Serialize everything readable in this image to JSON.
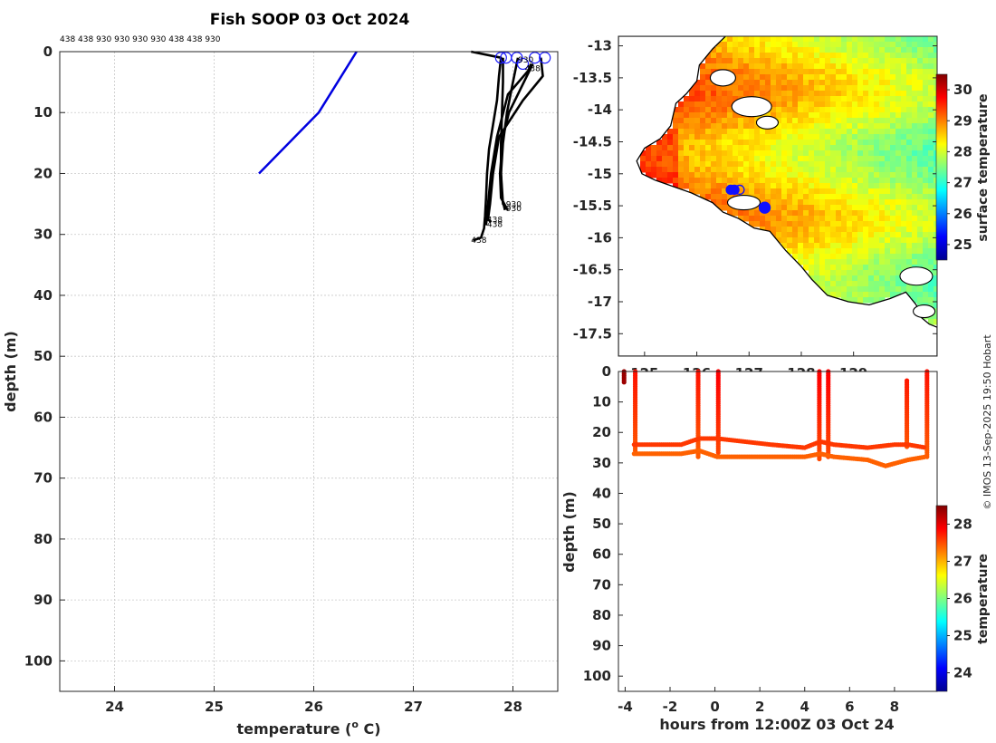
{
  "figure": {
    "title": "Fish SOOP 03 Oct 2024",
    "copyright": "© IMOS 13-Sep-2025 19:50 Hobart",
    "top_id_labels": "438 438 930 930 930 930 438 438 930"
  },
  "colors": {
    "surface_line": "#0000e0",
    "profile_line": "#000000",
    "marker_ring": "#1a1aff",
    "grid": "#c8c8c8",
    "land_line": "#000000"
  },
  "chart_data": [
    {
      "id": "profile",
      "type": "line",
      "xlabel": "temperature (o C)",
      "xlabel_main": "temperature (",
      "xlabel_sup": "o",
      "xlabel_end": " C)",
      "ylabel": "depth (m)",
      "xlim": [
        23.45,
        28.45
      ],
      "ylim": [
        105,
        0
      ],
      "xticks": [
        24,
        25,
        26,
        27,
        28
      ],
      "yticks": [
        0,
        10,
        20,
        30,
        40,
        50,
        60,
        70,
        80,
        90,
        100
      ],
      "grid": true,
      "series": [
        {
          "color": "blue",
          "points": [
            [
              26.43,
              0
            ],
            [
              26.05,
              10
            ],
            [
              25.45,
              20
            ]
          ]
        },
        {
          "color": "black",
          "points": [
            [
              27.58,
              0
            ],
            [
              27.88,
              1
            ],
            [
              27.86,
              4
            ],
            [
              27.84,
              8
            ],
            [
              27.8,
              12
            ],
            [
              27.76,
              16
            ],
            [
              27.74,
              20
            ],
            [
              27.73,
              24
            ],
            [
              27.72,
              27
            ],
            [
              27.71,
              29
            ],
            [
              27.68,
              30.5
            ],
            [
              27.6,
              31
            ]
          ]
        },
        {
          "color": "black",
          "points": [
            [
              27.9,
              1
            ],
            [
              27.9,
              5
            ],
            [
              27.89,
              10
            ],
            [
              27.88,
              15
            ],
            [
              27.88,
              20
            ],
            [
              27.89,
              24
            ],
            [
              27.92,
              26
            ]
          ]
        },
        {
          "color": "black",
          "points": [
            [
              28.05,
              1
            ],
            [
              28.0,
              5
            ],
            [
              27.94,
              10
            ],
            [
              27.9,
              15
            ],
            [
              27.88,
              20
            ],
            [
              27.9,
              25
            ],
            [
              27.95,
              26
            ]
          ]
        },
        {
          "color": "black",
          "points": [
            [
              28.2,
              2
            ],
            [
              28.08,
              6
            ],
            [
              27.96,
              10
            ],
            [
              27.9,
              14
            ],
            [
              27.87,
              20
            ],
            [
              27.88,
              24
            ],
            [
              27.93,
              25.5
            ]
          ]
        },
        {
          "color": "black",
          "points": [
            [
              28.28,
              1
            ],
            [
              28.3,
              4
            ],
            [
              28.1,
              8
            ],
            [
              27.86,
              14
            ],
            [
              27.8,
              20
            ],
            [
              27.77,
              25
            ],
            [
              27.75,
              27.5
            ],
            [
              27.78,
              28
            ]
          ]
        },
        {
          "color": "black",
          "points": [
            [
              28.18,
              2
            ],
            [
              28.16,
              3
            ],
            [
              27.95,
              7
            ],
            [
              27.84,
              14
            ],
            [
              27.78,
              20
            ],
            [
              27.75,
              25
            ],
            [
              27.73,
              28.5
            ]
          ]
        }
      ],
      "surface_markers": [
        {
          "t": 27.88,
          "d": 1
        },
        {
          "t": 27.93,
          "d": 1
        },
        {
          "t": 28.04,
          "d": 1
        },
        {
          "t": 28.1,
          "d": 2
        },
        {
          "t": 28.22,
          "d": 1
        },
        {
          "t": 28.32,
          "d": 1
        }
      ],
      "annotations": [
        {
          "text": "930",
          "t": 27.93,
          "d": 25.5
        },
        {
          "text": "930",
          "t": 27.93,
          "d": 26.2
        },
        {
          "text": "438",
          "t": 27.74,
          "d": 28.0
        },
        {
          "text": "438",
          "t": 27.74,
          "d": 28.8
        },
        {
          "text": "438",
          "t": 27.58,
          "d": 31.4
        },
        {
          "text": "438",
          "t": 28.12,
          "d": 3.2
        },
        {
          "text": "930",
          "t": 28.05,
          "d": 1.8
        }
      ]
    },
    {
      "id": "map",
      "type": "heatmap",
      "xlim": [
        124.5,
        130.6
      ],
      "ylim": [
        -17.85,
        -12.85
      ],
      "xticks": [
        125,
        126,
        127,
        128,
        129
      ],
      "yticks": [
        -13,
        -13.5,
        -14,
        -14.5,
        -15,
        -15.5,
        -16,
        -16.5,
        -17,
        -17.5
      ],
      "colorbar_label": "surface temperature",
      "colorbar_ticks": [
        25,
        26,
        27,
        28,
        29,
        30
      ],
      "colorbar_range": [
        24.5,
        30.5
      ],
      "tracks": [
        {
          "lon": 126.65,
          "lat": -15.25
        },
        {
          "lon": 126.72,
          "lat": -15.25
        },
        {
          "lon": 126.82,
          "lat": -15.25
        },
        {
          "lon": 127.3,
          "lat": -15.53
        }
      ]
    },
    {
      "id": "timeseries",
      "type": "scatter",
      "xlabel": "hours from 12:00Z 03 Oct 24",
      "ylabel": "depth (m)",
      "xlim": [
        -4.3,
        9.9
      ],
      "ylim": [
        105,
        0
      ],
      "xticks": [
        -4,
        -2,
        0,
        2,
        4,
        6,
        8
      ],
      "yticks": [
        0,
        10,
        20,
        30,
        40,
        50,
        60,
        70,
        80,
        90,
        100
      ],
      "colorbar_label": "temperature",
      "colorbar_ticks": [
        24,
        25,
        26,
        27,
        28
      ],
      "colorbar_range": [
        23.5,
        28.5
      ],
      "casts": [
        {
          "t": -4.0,
          "d_min": 0,
          "d_max": 4,
          "temp": 28.4
        },
        {
          "t": -3.6,
          "d_min": 0,
          "d_max": 26,
          "temp": 27.8
        },
        {
          "t": -0.7,
          "d_min": 0,
          "d_max": 28,
          "temp": 27.8
        },
        {
          "t": 0.1,
          "d_min": 0,
          "d_max": 27,
          "temp": 27.9
        },
        {
          "t": 4.7,
          "d_min": 0,
          "d_max": 29,
          "temp": 27.9
        },
        {
          "t": 5.0,
          "d_min": 0,
          "d_max": 28,
          "temp": 27.9
        },
        {
          "t": 8.6,
          "d_min": 3,
          "d_max": 25,
          "temp": 27.8
        },
        {
          "t": 9.4,
          "d_min": 0,
          "d_max": 28,
          "temp": 27.8
        }
      ],
      "bands": [
        {
          "points": [
            [
              -3.6,
              24
            ],
            [
              -1.5,
              24
            ],
            [
              -0.7,
              22
            ],
            [
              0.1,
              22
            ],
            [
              2.5,
              24
            ],
            [
              4.0,
              25
            ],
            [
              4.7,
              23
            ],
            [
              5.3,
              24
            ],
            [
              6.8,
              25
            ],
            [
              8.0,
              24
            ],
            [
              8.6,
              24
            ],
            [
              9.4,
              25
            ]
          ],
          "temp": 27.6
        },
        {
          "points": [
            [
              -3.6,
              27
            ],
            [
              -1.5,
              27
            ],
            [
              -0.7,
              26
            ],
            [
              0.1,
              28
            ],
            [
              2.5,
              28
            ],
            [
              4.0,
              28
            ],
            [
              4.7,
              27
            ],
            [
              5.3,
              28
            ],
            [
              6.8,
              29
            ],
            [
              7.6,
              31
            ],
            [
              8.6,
              29
            ],
            [
              9.4,
              28
            ]
          ],
          "temp": 27.4
        }
      ]
    }
  ]
}
